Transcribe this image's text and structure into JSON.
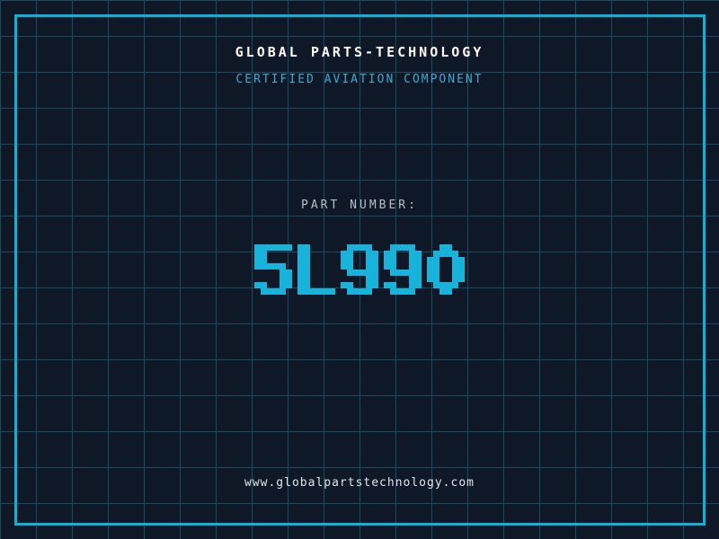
{
  "header": {
    "title": "GLOBAL PARTS-TECHNOLOGY",
    "subtitle": "CERTIFIED AVIATION COMPONENT"
  },
  "part": {
    "label": "PART NUMBER:",
    "number": "5L990"
  },
  "footer": {
    "url": "www.globalpartstechnology.com"
  },
  "colors": {
    "background": "#0f1827",
    "grid_line": "#1b4a5f",
    "frame_border": "#0db2d8",
    "title_text": "#ffffff",
    "subtitle_text": "#3ea9cf",
    "part_label_text": "#b9bdc5",
    "part_number_text": "#17b3da",
    "footer_text": "#dfe7ea"
  }
}
